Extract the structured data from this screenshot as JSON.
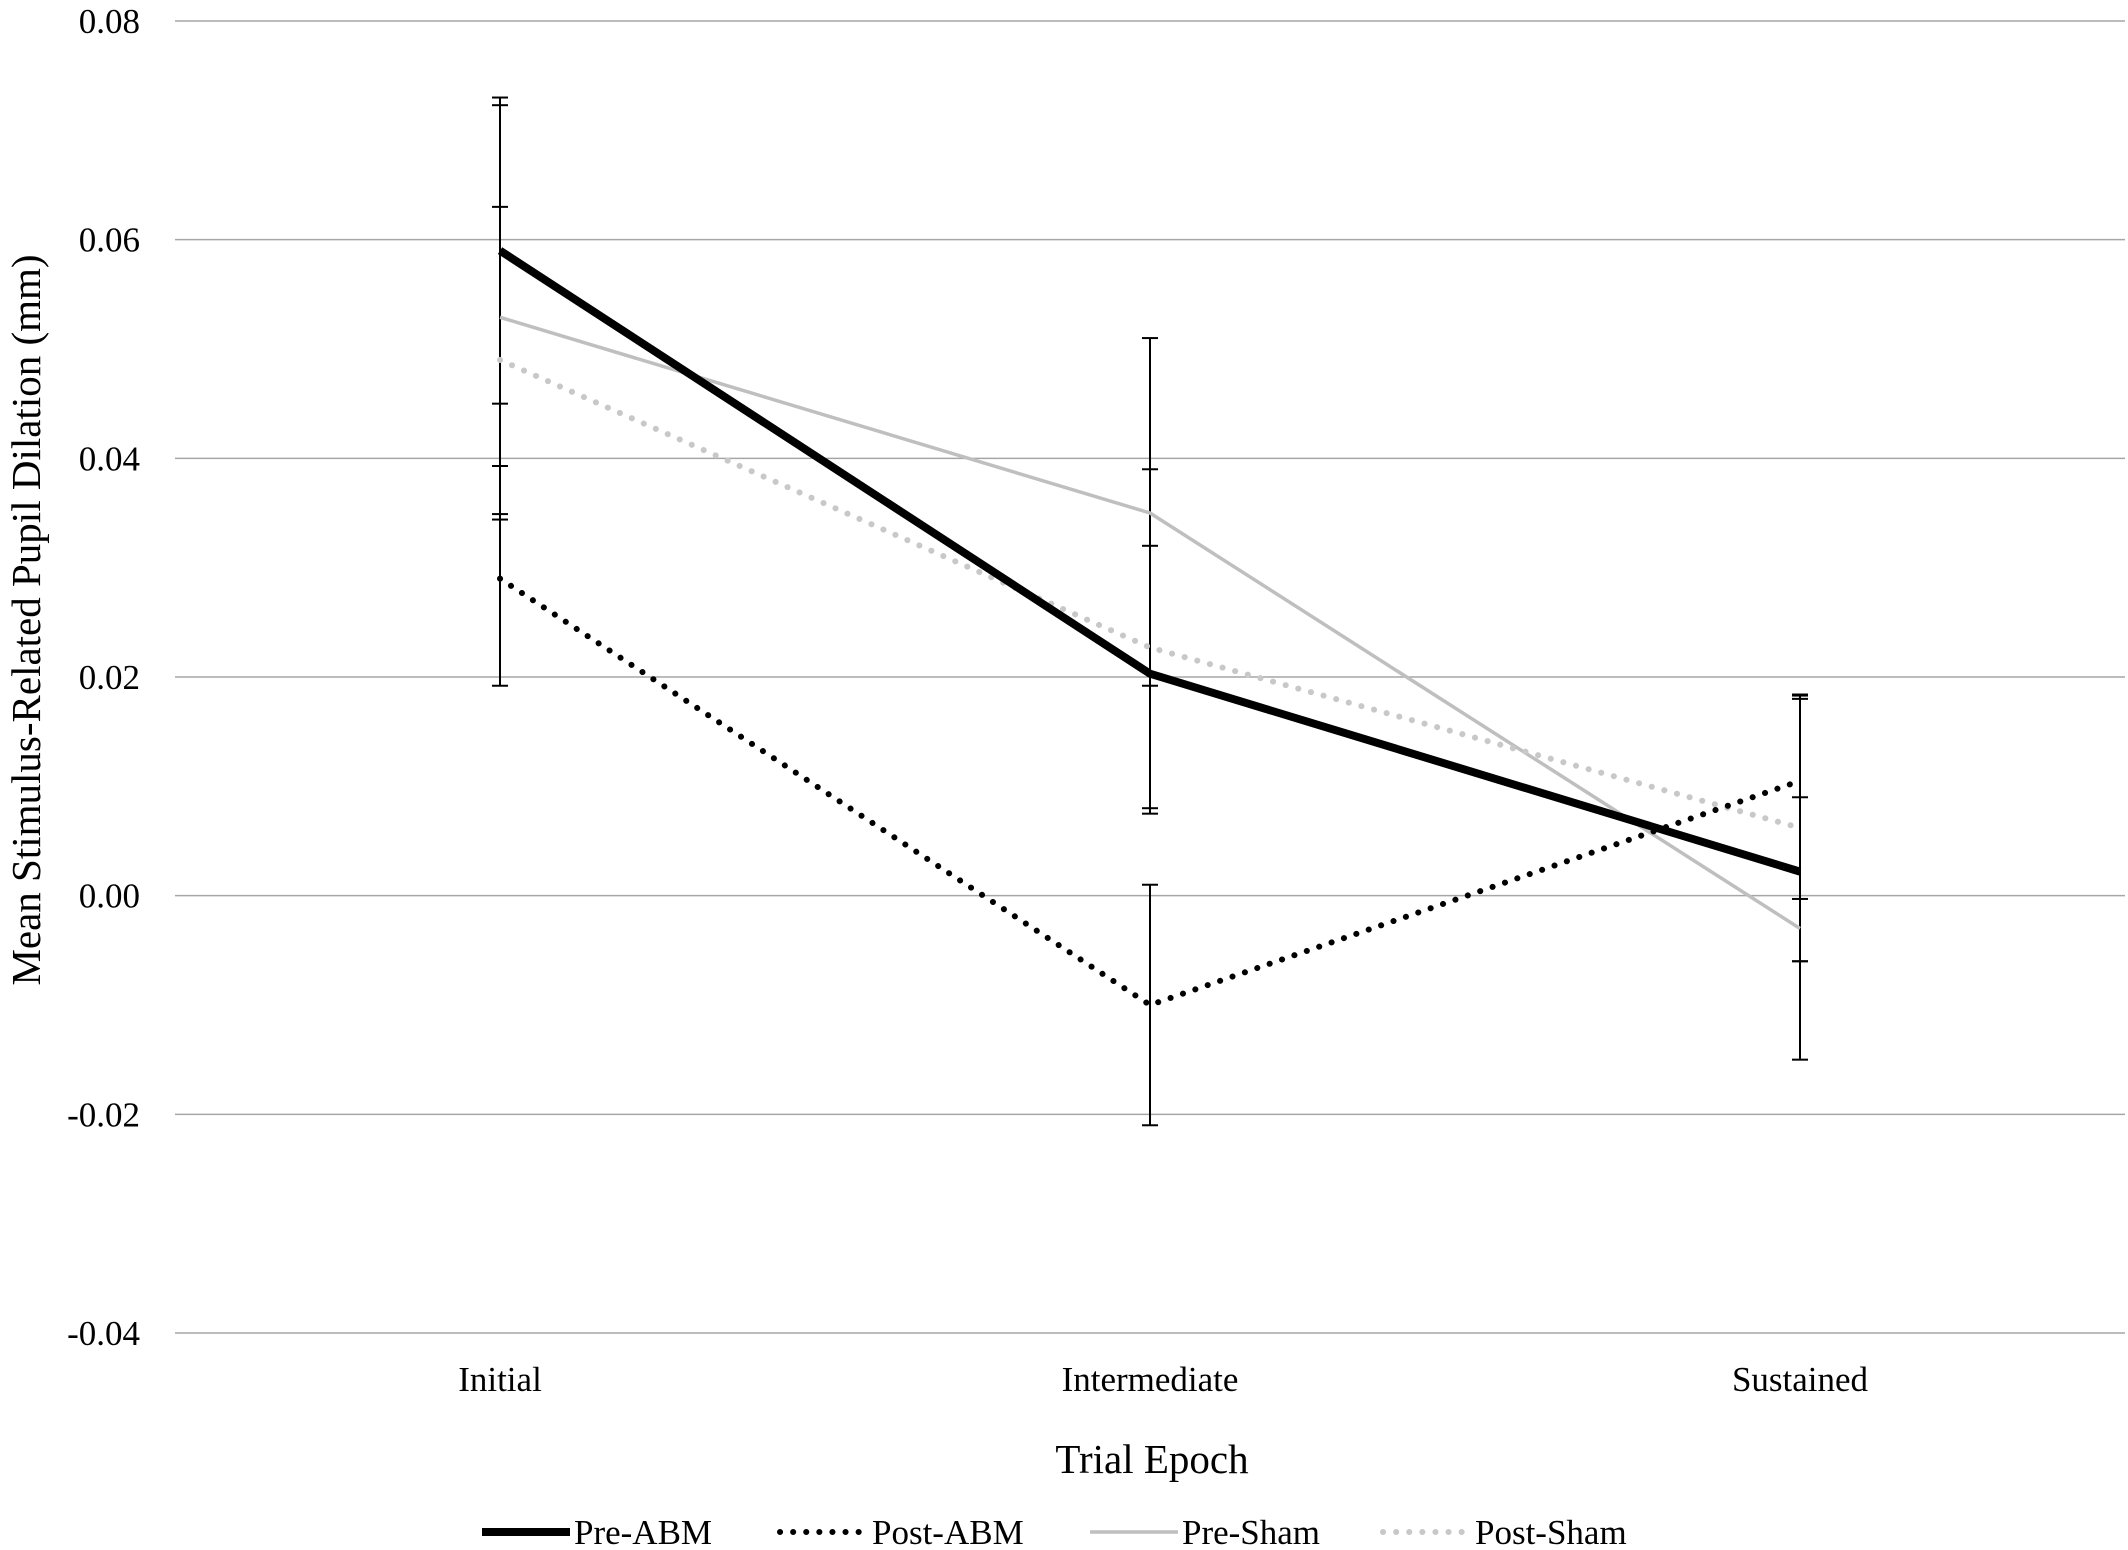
{
  "chart_data": {
    "type": "line",
    "title": "",
    "xlabel": "Trial Epoch",
    "ylabel": "Mean Stimulus-Related  Pupil Dilation (mm)",
    "categories": [
      "Initial",
      "Intermediate",
      "Sustained"
    ],
    "ylim": [
      -0.04,
      0.08
    ],
    "yticks": [
      -0.04,
      -0.02,
      0.0,
      0.02,
      0.04,
      0.06,
      0.08
    ],
    "ytick_labels": [
      "-0.04",
      "-0.02",
      "0.00",
      "0.02",
      "0.04",
      "0.06",
      "0.08"
    ],
    "grid": true,
    "legend_position": "bottom",
    "series": [
      {
        "name": "Pre-ABM",
        "color": "#000000",
        "style": "solid-thick",
        "values": [
          0.059,
          0.0203,
          0.0022
        ],
        "error_low": [
          0.045,
          0.0075,
          -0.006
        ],
        "error_high": [
          0.073,
          0.032,
          0.0184
        ]
      },
      {
        "name": "Post-ABM",
        "color": "#000000",
        "style": "dotted",
        "values": [
          0.029,
          -0.01,
          0.0105
        ],
        "error_low": [
          0.0192,
          -0.021,
          -0.0003
        ],
        "error_high": [
          0.0393,
          0.001,
          0.0183
        ]
      },
      {
        "name": "Pre-Sham",
        "color": "#bfbfbf",
        "style": "solid-thin",
        "values": [
          0.0529,
          0.035,
          -0.003
        ],
        "error_low": [
          0.0344,
          0.0192,
          -0.015
        ],
        "error_high": [
          0.0723,
          0.051,
          0.009
        ]
      },
      {
        "name": "Post-Sham",
        "color": "#c8c8c8",
        "style": "dotted",
        "values": [
          0.049,
          0.0227,
          0.0062
        ],
        "error_low": [
          0.0349,
          0.008,
          -0.006
        ],
        "error_high": [
          0.063,
          0.039,
          0.018
        ]
      }
    ]
  }
}
